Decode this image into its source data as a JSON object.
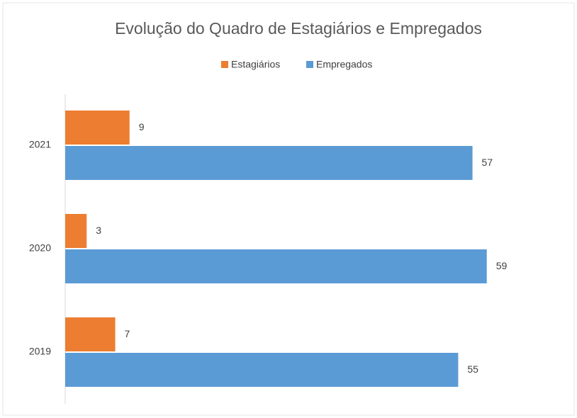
{
  "chart_data": {
    "type": "hbar",
    "title": "Evolução do Quadro de Estagiários e Empregados",
    "categories": [
      "2019",
      "2020",
      "2021"
    ],
    "series": [
      {
        "name": "Estagiários",
        "color": "#ed7d31",
        "values": [
          7,
          3,
          9
        ]
      },
      {
        "name": "Empregados",
        "color": "#5b9bd5",
        "values": [
          55,
          59,
          57
        ]
      }
    ],
    "legend": "top"
  }
}
